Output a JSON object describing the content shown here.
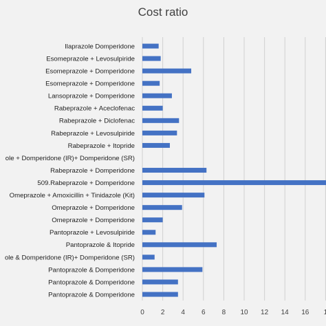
{
  "chart_data": {
    "type": "bar",
    "orientation": "horizontal",
    "title": "Cost ratio",
    "xlabel": "",
    "ylabel": "",
    "xlim": [
      0,
      18
    ],
    "x_ticks": [
      "0",
      "2",
      "4",
      "6",
      "8",
      "10",
      "12",
      "14",
      "16",
      "1"
    ],
    "grid": "vertical",
    "legend": "none",
    "bar_color": "#4472c4",
    "categories": [
      "Ilaprazole Domperidone",
      "Esomeprazole + Levosulpiride",
      "Esomeprazole + Domperidone",
      "Esomeprazole + Domperidone",
      "Lansoprazole + Domperidone",
      "Rabeprazole + Aceclofenac",
      "Rabeprazole + Diclofenac",
      "Rabeprazole + Levosulpiride",
      "Rabeprazole + Itopride",
      "ole + Domperidone (IR)+ Domperidone (SR)",
      "Rabeprazole + Domperidone",
      "509.Rabeprazole + Domperidone",
      "Omeprazole + Amoxicillin + Tinidazole (Kit)",
      "Omeprazole + Domperidone",
      "Omeprazole + Domperidone",
      "Pantoprazole + Levosulpiride",
      "Pantoprazole & Itopride",
      "ole & Domperidone (IR)+ Domperidone (SR)",
      "Pantoprazole & Domperidone",
      "Pantoprazole & Domperidone",
      "Pantoprazole & Domperidone"
    ],
    "values": [
      1.6,
      1.8,
      4.8,
      1.7,
      2.9,
      2.0,
      3.6,
      3.4,
      2.7,
      0,
      6.3,
      18.5,
      6.1,
      3.9,
      2.0,
      1.3,
      7.3,
      1.2,
      5.9,
      3.5,
      3.5
    ]
  }
}
